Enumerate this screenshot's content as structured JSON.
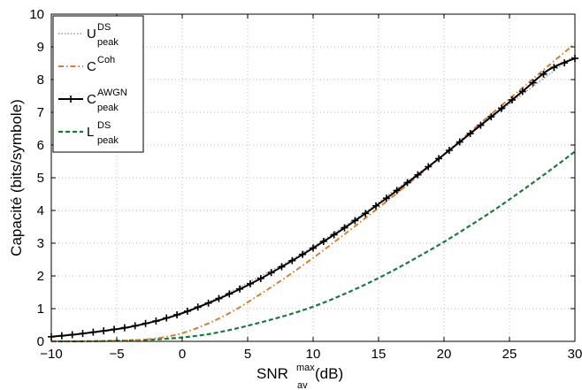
{
  "chart_data": {
    "type": "line",
    "xlabel": {
      "main": "SNR",
      "sup": "max",
      "sub": "av",
      "unit": " (dB)"
    },
    "ylabel": "Capacité (bits/symbole)",
    "xlim": [
      -10,
      30
    ],
    "ylim": [
      0,
      10
    ],
    "xticks": [
      -10,
      -5,
      0,
      5,
      10,
      15,
      20,
      25,
      30
    ],
    "yticks": [
      0,
      1,
      2,
      3,
      4,
      5,
      6,
      7,
      8,
      9,
      10
    ],
    "xtick_labels": [
      "−10",
      "−5",
      "0",
      "5",
      "10",
      "15",
      "20",
      "25",
      "30"
    ],
    "ytick_labels": [
      "0",
      "1",
      "2",
      "3",
      "4",
      "5",
      "6",
      "7",
      "8",
      "9",
      "10"
    ],
    "grid": true,
    "legend_position": "top-left",
    "series": [
      {
        "name": "U peak DS",
        "legend": {
          "main": "U",
          "sup": "DS",
          "sub": "peak"
        },
        "style": "dotted",
        "color": "#9a9a9a",
        "x": [
          -10,
          -8,
          -6,
          -4,
          -2,
          0,
          2,
          4,
          6,
          8,
          10,
          12,
          14,
          16,
          18,
          20,
          22,
          24,
          26,
          28,
          30
        ],
        "y": [
          0.14,
          0.22,
          0.32,
          0.44,
          0.62,
          0.88,
          1.2,
          1.58,
          2.0,
          2.42,
          2.9,
          3.42,
          3.95,
          4.55,
          5.12,
          5.72,
          6.35,
          6.95,
          7.55,
          8.15,
          8.75
        ]
      },
      {
        "name": "C Coh",
        "legend": {
          "main": "C",
          "sup": "Coh",
          "sub": ""
        },
        "style": "dashdot",
        "color": "#d27f2d",
        "x": [
          -10,
          -8,
          -6,
          -4,
          -2,
          0,
          2,
          4,
          6,
          8,
          10,
          12,
          14,
          16,
          18,
          20,
          22,
          24,
          26,
          28,
          30
        ],
        "y": [
          0.0,
          0.0,
          0.01,
          0.03,
          0.09,
          0.25,
          0.55,
          0.95,
          1.45,
          1.98,
          2.55,
          3.15,
          3.77,
          4.4,
          5.05,
          5.72,
          6.4,
          7.08,
          7.75,
          8.43,
          9.1
        ]
      },
      {
        "name": "C peak AWGN",
        "legend": {
          "main": "C",
          "sup": "AWGN",
          "sub": "peak"
        },
        "style": "solid-plus",
        "color": "#000000",
        "x": [
          -10,
          -8,
          -6,
          -4,
          -2,
          0,
          2,
          4,
          6,
          8,
          10,
          12,
          14,
          16,
          18,
          20,
          22,
          24,
          26,
          28,
          30
        ],
        "y": [
          0.14,
          0.22,
          0.32,
          0.44,
          0.62,
          0.86,
          1.17,
          1.52,
          1.92,
          2.37,
          2.85,
          3.36,
          3.91,
          4.49,
          5.09,
          5.71,
          6.35,
          6.99,
          7.64,
          8.3,
          8.65
        ]
      },
      {
        "name": "L peak DS",
        "legend": {
          "main": "L",
          "sup": "DS",
          "sub": "peak"
        },
        "style": "dashed",
        "color": "#1a7a3c",
        "x": [
          -10,
          -8,
          -6,
          -4,
          -2,
          0,
          2,
          4,
          6,
          8,
          10,
          12,
          14,
          16,
          18,
          20,
          22,
          24,
          26,
          28,
          30
        ],
        "y": [
          0.0,
          0.0,
          0.01,
          0.03,
          0.06,
          0.12,
          0.22,
          0.38,
          0.58,
          0.8,
          1.06,
          1.38,
          1.74,
          2.14,
          2.58,
          3.04,
          3.54,
          4.06,
          4.62,
          5.2,
          5.8
        ]
      }
    ]
  }
}
